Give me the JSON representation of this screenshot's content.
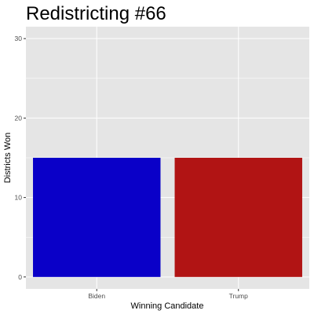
{
  "chart_data": {
    "type": "bar",
    "title": "Redistricting #66",
    "xlabel": "Winning Candidate",
    "ylabel": "Districts Won",
    "categories": [
      "Biden",
      "Trump"
    ],
    "values": [
      15,
      15
    ],
    "bar_colors": [
      "#0a00c8",
      "#b11414"
    ],
    "ylim": [
      -1.5,
      31.5
    ],
    "yticks": [
      0,
      10,
      20,
      30
    ],
    "ytick_labels": [
      "0",
      "10",
      "20",
      "30"
    ],
    "grid": true,
    "panel_background": "#e5e5e5",
    "grid_color": "#ffffff",
    "legend": "none"
  }
}
